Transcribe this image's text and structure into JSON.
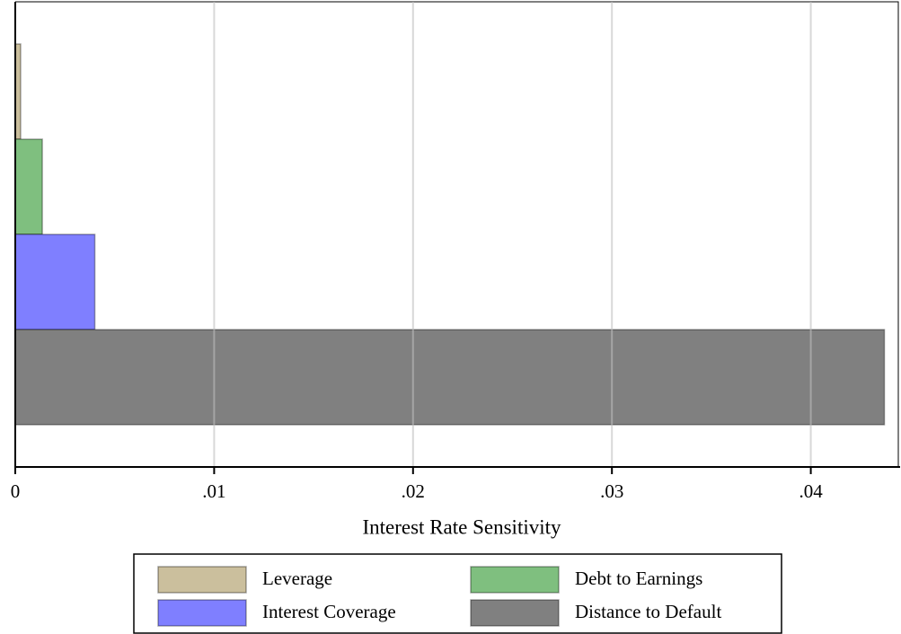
{
  "chart_data": {
    "type": "bar",
    "orientation": "horizontal",
    "xlabel": "Interest Rate Sensitivity",
    "series": [
      {
        "name": "Leverage",
        "color": "#cbbf9d",
        "values": [
          0.00027
        ]
      },
      {
        "name": "Debt to Earnings",
        "color": "#7fbf7f",
        "values": [
          0.00136
        ]
      },
      {
        "name": "Interest Coverage",
        "color": "#7f7fff",
        "values": [
          0.004
        ]
      },
      {
        "name": "Distance to Default",
        "color": "#808080",
        "values": [
          0.0437
        ]
      }
    ],
    "xlim": [
      0,
      0.0444
    ],
    "xticks": [
      0,
      {
        "value": 0.01,
        "label": ".01"
      },
      {
        "value": 0.02,
        "label": ".02"
      },
      {
        "value": 0.03,
        "label": ".03"
      },
      {
        "value": 0.04,
        "label": ".04"
      }
    ],
    "grid": true,
    "legend": "bottom"
  }
}
